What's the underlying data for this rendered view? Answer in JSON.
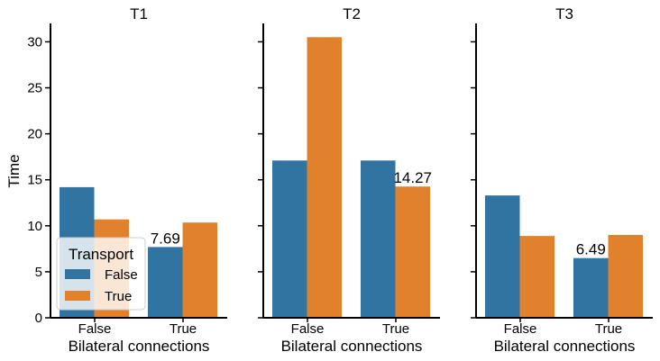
{
  "chart_data": {
    "type": "bar",
    "facet_titles": [
      "T1",
      "T2",
      "T3"
    ],
    "xlabel": "Bilateral connections",
    "ylabel": "Time",
    "categories": [
      "False",
      "True"
    ],
    "ylim": [
      0,
      32
    ],
    "yticks": [
      0,
      5,
      10,
      15,
      20,
      25,
      30
    ],
    "legend": {
      "title": "Transport",
      "position": "lower-left",
      "entries": [
        "False",
        "True"
      ]
    },
    "colors": {
      "False": "#3274a1",
      "True": "#e1812c"
    },
    "panels": [
      {
        "title": "T1",
        "series": [
          {
            "name": "False",
            "values": [
              14.2,
              7.69
            ]
          },
          {
            "name": "True",
            "values": [
              10.7,
              10.35
            ]
          }
        ],
        "annotation": {
          "category": "True",
          "series": "False",
          "text": "7.69"
        }
      },
      {
        "title": "T2",
        "series": [
          {
            "name": "False",
            "values": [
              17.1,
              17.1
            ]
          },
          {
            "name": "True",
            "values": [
              30.5,
              14.27
            ]
          }
        ],
        "annotation": {
          "category": "True",
          "series": "True",
          "text": "14.27"
        }
      },
      {
        "title": "T3",
        "series": [
          {
            "name": "False",
            "values": [
              13.3,
              6.49
            ]
          },
          {
            "name": "True",
            "values": [
              8.9,
              9.0
            ]
          }
        ],
        "annotation": {
          "category": "True",
          "series": "False",
          "text": "6.49"
        }
      }
    ]
  }
}
